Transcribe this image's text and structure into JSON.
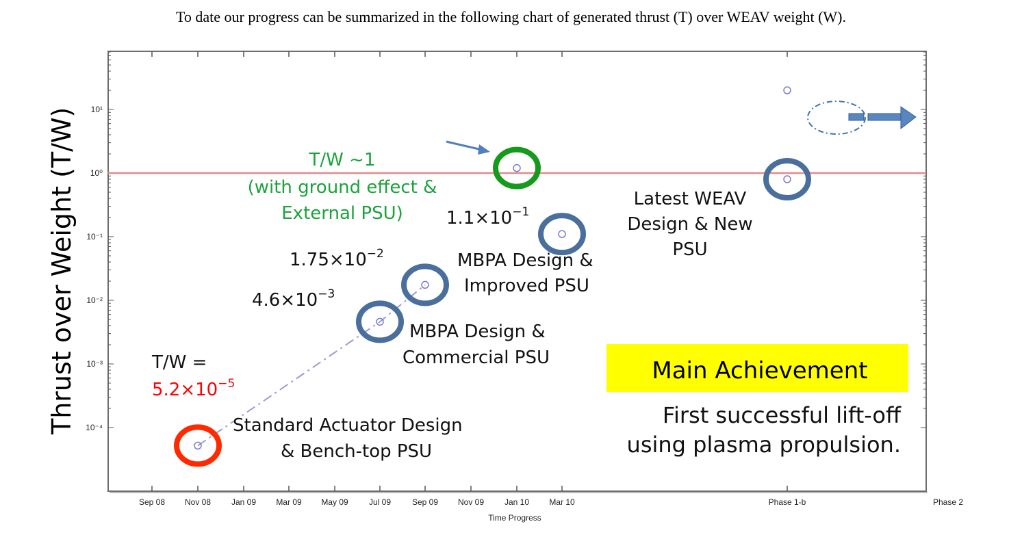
{
  "intro_text": "To date our progress can be summarized in the following chart of generated thrust (T) over WEAV weight (W).",
  "chart_data": {
    "type": "scatter",
    "ylabel": "Thrust over Weight (T/W)",
    "xlabel": "Time Progress",
    "yscale": "log",
    "ylim": [
      0.0001,
      50
    ],
    "x_tick_labels": [
      "Sep 08",
      "Nov 08",
      "Jan 09",
      "Mar 09",
      "May 09",
      "Jul 09",
      "Sep 09",
      "Nov 09",
      "Jan 10",
      "Mar 10",
      "Phase 1-b",
      "Phase 2"
    ],
    "y_tick_labels": [
      "10¹",
      "10⁰",
      "10⁻¹",
      "10⁻²",
      "10⁻³",
      "10⁻⁴"
    ],
    "reference_line": {
      "y": 1,
      "color": "#e58a8a"
    },
    "points": [
      {
        "x": "Nov 08",
        "y": 5.2e-05,
        "ring_color": "#ff2a00",
        "value_label": "T/W = 5.2×10⁻⁵",
        "description": "Standard Actuator Design & Bench-top PSU"
      },
      {
        "x": "Jul 09",
        "y": 0.0046,
        "ring_color": "#4a6f9c",
        "value_label": "4.6×10⁻³",
        "description": "MBPA Design & Commercial PSU"
      },
      {
        "x": "Sep 09",
        "y": 0.0175,
        "ring_color": "#4a6f9c",
        "value_label": "1.75×10⁻²",
        "description": "MBPA Design & Improved PSU"
      },
      {
        "x": "Jan 10",
        "y": 1.2,
        "ring_color": "#159a1c",
        "value_label": "T/W ~1 (with ground effect & External PSU)",
        "description": ""
      },
      {
        "x": "Mar 10",
        "y": 0.11,
        "ring_color": "#4a6f9c",
        "value_label": "1.1×10⁻¹",
        "description": ""
      },
      {
        "x": "Phase 1-b",
        "y": 0.8,
        "ring_color": "#4a6f9c",
        "value_label": "",
        "description": "Latest WEAV Design & New PSU"
      },
      {
        "x": "Phase 1-b",
        "y": 20,
        "ring_color": "",
        "value_label": "",
        "description": ""
      }
    ]
  },
  "labels": {
    "tw_prefix": "T/W =",
    "tw_first_value": "5.2×10⁻⁵",
    "tw_first_mantissa": "5.2×10",
    "tw_first_exp": "−5",
    "standard_line1": "Standard Actuator Design",
    "standard_line2": "& Bench-top PSU",
    "v2_mantissa": "4.6×10",
    "v2_exp": "−3",
    "mbpa_comm_line1": "MBPA Design &",
    "mbpa_comm_line2": "Commercial PSU",
    "v3_mantissa": "1.75×10",
    "v3_exp": "−2",
    "mbpa_impr_line1": "MBPA Design &",
    "mbpa_impr_line2": "Improved PSU",
    "green_line1": "T/W ~1",
    "green_line2": "(with ground effect &",
    "green_line3": "External PSU)",
    "v5_mantissa": "1.1×10",
    "v5_exp": "−1",
    "latest_line1": "Latest WEAV",
    "latest_line2": "Design &  New",
    "latest_line3": "PSU",
    "main_achievement": "Main Achievement",
    "first_line1": "First successful lift-off",
    "first_line2": "using plasma propulsion."
  },
  "colors": {
    "highlight": "#ffff00",
    "blue_ring": "#4a6f9c",
    "green_ring": "#159a1c",
    "red_ring": "#ff2a00",
    "green_text": "#1aa33a",
    "red_text": "#ff0000",
    "arrow": "#4f7fbf"
  }
}
